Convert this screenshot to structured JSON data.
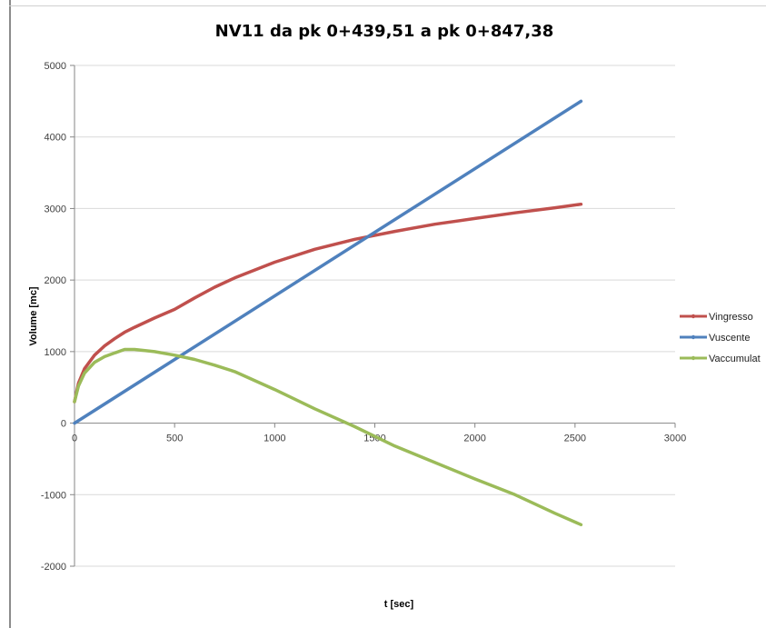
{
  "chart_data": {
    "type": "line",
    "title": "NV11 da pk 0+439,51 a pk 0+847,38",
    "xlabel": "t [sec]",
    "ylabel": "Volume [mc]",
    "xlim": [
      0,
      3000
    ],
    "ylim": [
      -2000,
      5000
    ],
    "x_ticks": [
      0,
      500,
      1000,
      1500,
      2000,
      2500,
      3000
    ],
    "y_ticks": [
      -2000,
      -1000,
      0,
      1000,
      2000,
      3000,
      4000,
      5000
    ],
    "grid": "horizontal",
    "legend_position": "right",
    "series": [
      {
        "name": "Vingresso",
        "color": "#c0504d",
        "x": [
          0,
          20,
          50,
          100,
          150,
          200,
          250,
          300,
          400,
          500,
          600,
          700,
          800,
          1000,
          1200,
          1400,
          1600,
          1800,
          2000,
          2200,
          2400,
          2530
        ],
        "y": [
          300,
          560,
          760,
          950,
          1080,
          1180,
          1270,
          1340,
          1470,
          1590,
          1750,
          1900,
          2030,
          2250,
          2430,
          2570,
          2680,
          2780,
          2860,
          2940,
          3010,
          3060
        ]
      },
      {
        "name": "Vuscente",
        "color": "#4f81bd",
        "x": [
          0,
          2530
        ],
        "y": [
          0,
          4500
        ]
      },
      {
        "name": "Vaccumulat",
        "color": "#9bbb59",
        "x": [
          0,
          20,
          50,
          100,
          150,
          200,
          250,
          300,
          400,
          500,
          600,
          700,
          800,
          1000,
          1200,
          1400,
          1600,
          1800,
          2000,
          2200,
          2400,
          2530
        ],
        "y": [
          300,
          520,
          700,
          850,
          930,
          980,
          1030,
          1030,
          1000,
          950,
          890,
          810,
          720,
          470,
          200,
          -50,
          -320,
          -550,
          -780,
          -1000,
          -1260,
          -1420
        ]
      }
    ]
  }
}
